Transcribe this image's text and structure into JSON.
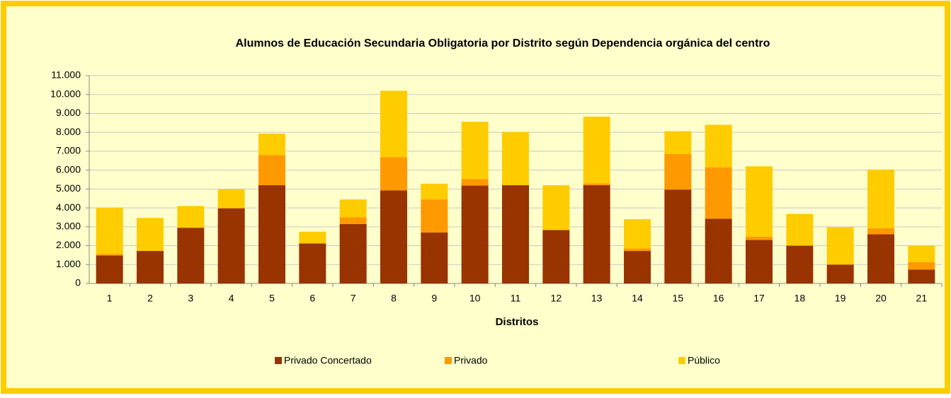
{
  "chart_data": {
    "type": "stacked-bar",
    "title": "Alumnos de Educación Secundaria Obligatoria por Distrito según Dependencia orgánica del centro",
    "x_label": "Distritos",
    "categories": [
      "1",
      "2",
      "3",
      "4",
      "5",
      "6",
      "7",
      "8",
      "9",
      "10",
      "11",
      "12",
      "13",
      "14",
      "15",
      "16",
      "17",
      "18",
      "19",
      "20",
      "21"
    ],
    "series": [
      {
        "name": "Privado Concertado",
        "color": "#993300",
        "values": [
          1480,
          1720,
          2950,
          3980,
          5200,
          2120,
          3150,
          4930,
          2700,
          5180,
          5200,
          2830,
          5200,
          1720,
          4970,
          3430,
          2300,
          2000,
          1000,
          2600,
          730
        ]
      },
      {
        "name": "Privado",
        "color": "#ff9900",
        "values": [
          80,
          0,
          0,
          0,
          1600,
          0,
          350,
          1750,
          1750,
          350,
          0,
          0,
          100,
          130,
          1880,
          2720,
          180,
          0,
          0,
          330,
          400
        ]
      },
      {
        "name": "Público",
        "color": "#ffcc00",
        "values": [
          2460,
          1750,
          1150,
          1000,
          1130,
          620,
          950,
          3520,
          830,
          3030,
          2820,
          2370,
          3530,
          1550,
          1210,
          2250,
          3720,
          1680,
          1980,
          3100,
          870
        ]
      }
    ],
    "ylim": [
      0,
      11000
    ],
    "yticks": [
      0,
      {
        "value": 1000,
        "label": "1.000"
      },
      {
        "value": 2000,
        "label": "2.000"
      },
      {
        "value": 3000,
        "label": "3.000"
      },
      {
        "value": 4000,
        "label": "4.000"
      },
      {
        "value": 5000,
        "label": "5.000"
      },
      {
        "value": 6000,
        "label": "6.000"
      },
      {
        "value": 7000,
        "label": "7.000"
      },
      {
        "value": 8000,
        "label": "8.000"
      },
      {
        "value": 9000,
        "label": "9.000"
      },
      {
        "value": 10000,
        "label": "10.000"
      },
      {
        "value": 11000,
        "label": "11.000"
      }
    ],
    "grid": true,
    "legend": "bottom"
  }
}
